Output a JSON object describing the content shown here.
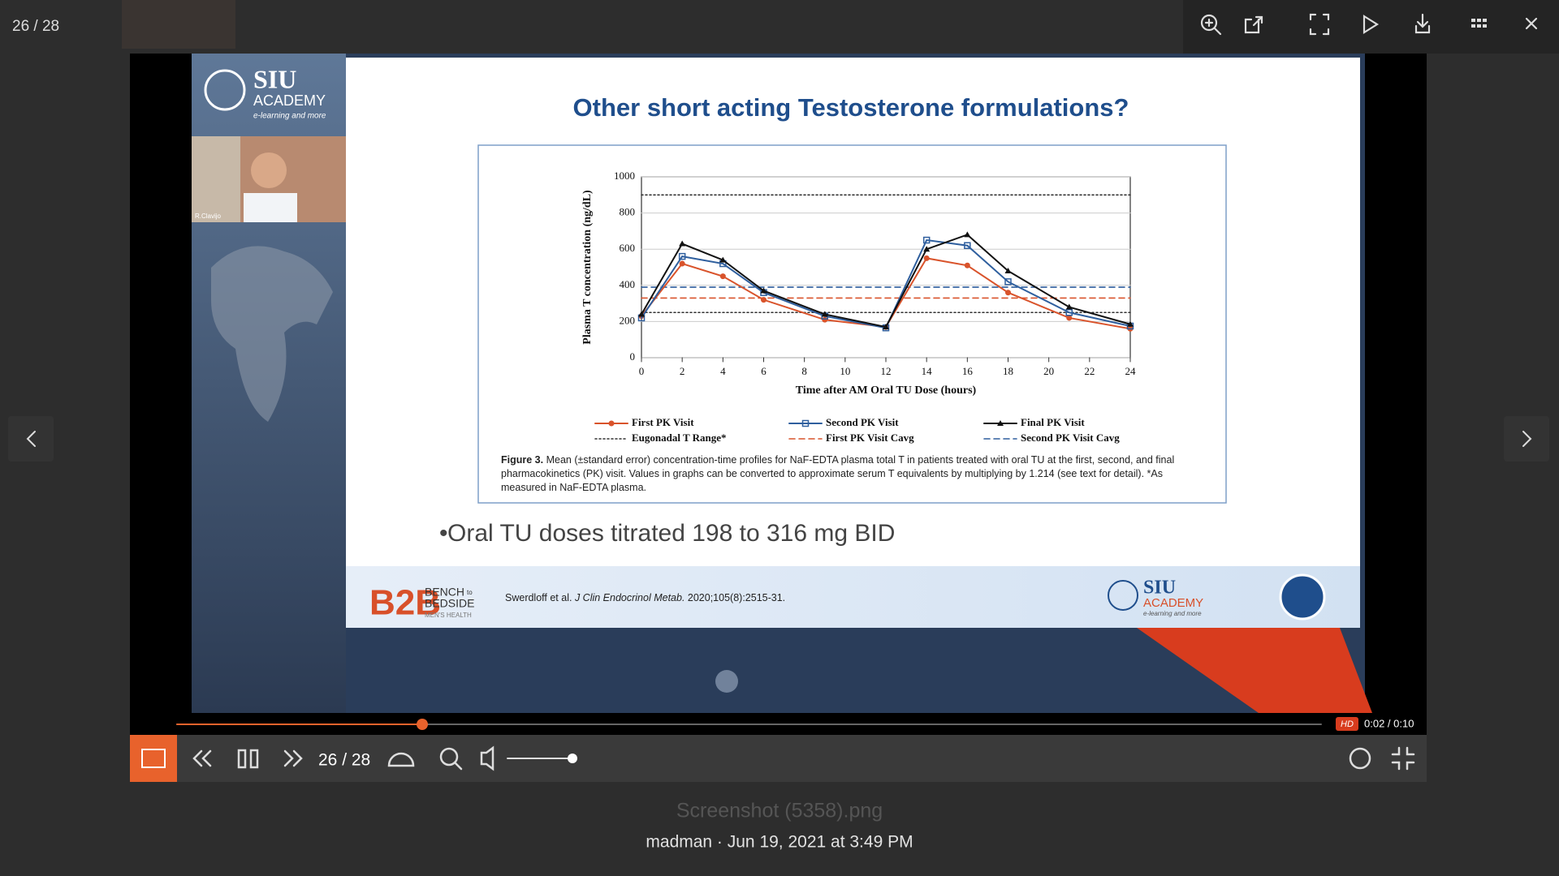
{
  "header": {
    "counter": "26 / 28"
  },
  "slide": {
    "title": "Other short acting Testosterone formulations?",
    "brand": {
      "name": "SIU",
      "sub": "ACADEMY",
      "tagline": "e-learning and more"
    },
    "speaker": "R.Clavijo",
    "chart": {
      "type": "line",
      "x_label": "Time after AM Oral TU Dose (hours)",
      "y_label": "Plasma T concentration (ng/dL)",
      "x": [
        0,
        2,
        4,
        6,
        9,
        12,
        14,
        16,
        18,
        21,
        24
      ],
      "series": [
        {
          "name": "First PK Visit",
          "color": "#d9532b",
          "marker": "circle",
          "values": [
            230,
            520,
            450,
            320,
            210,
            170,
            550,
            510,
            360,
            220,
            160
          ]
        },
        {
          "name": "Second PK Visit",
          "color": "#2f5f9e",
          "marker": "square",
          "values": [
            220,
            560,
            520,
            360,
            230,
            165,
            650,
            620,
            420,
            250,
            175
          ]
        },
        {
          "name": "Final PK Visit",
          "color": "#111111",
          "marker": "triangle",
          "values": [
            240,
            630,
            540,
            370,
            240,
            170,
            600,
            680,
            480,
            280,
            185
          ]
        }
      ],
      "reference_lines": [
        {
          "name": "Eugonadal T Range*",
          "color": "#333333",
          "dash": "2 3",
          "values": [
            250,
            900
          ]
        },
        {
          "name": "First PK Visit Cavg",
          "color": "#d9532b",
          "dash": "7 5",
          "values": [
            330
          ]
        },
        {
          "name": "Second PK Visit Cavg",
          "color": "#2f5f9e",
          "dash": "7 5",
          "values": [
            390
          ]
        }
      ],
      "xlim": [
        0,
        24
      ],
      "xticks": [
        0,
        2,
        4,
        6,
        8,
        10,
        12,
        14,
        16,
        18,
        20,
        22,
        24
      ],
      "ylim": [
        0,
        1000
      ],
      "yticks": [
        0,
        200,
        400,
        600,
        800,
        1000
      ],
      "grid": true
    },
    "figure_caption": {
      "label": "Figure 3.",
      "text": "Mean (±standard error) concentration-time profiles for NaF-EDTA plasma total T in patients treated with oral TU at the first, second, and final pharmacokinetics (PK) visit. Values in graphs can be converted to approximate serum T equivalents by multiplying by 1.214 (see text for detail). *As measured in NaF-EDTA plasma."
    },
    "bullet": "Oral TU doses titrated 198 to 316 mg BID",
    "footer": {
      "bench": "BENCH",
      "to": "to",
      "bedside": "BEDSIDE",
      "mens_health": "MEN'S HEALTH",
      "citation_authors": "Swerdloff et al.",
      "citation_journal": "J Clin Endocrinol Metab.",
      "citation_ref": "2020;105(8):2515-31.",
      "logo_name": "SIU",
      "logo_sub": "ACADEMY",
      "logo_tagline": "e-learning and more"
    }
  },
  "player": {
    "quality": "HD",
    "time": "0:02 / 0:10",
    "counter": "26 / 28"
  },
  "caption": {
    "filename": "Screenshot (5358).png",
    "meta": "madman · Jun 19, 2021 at 3:49 PM"
  }
}
